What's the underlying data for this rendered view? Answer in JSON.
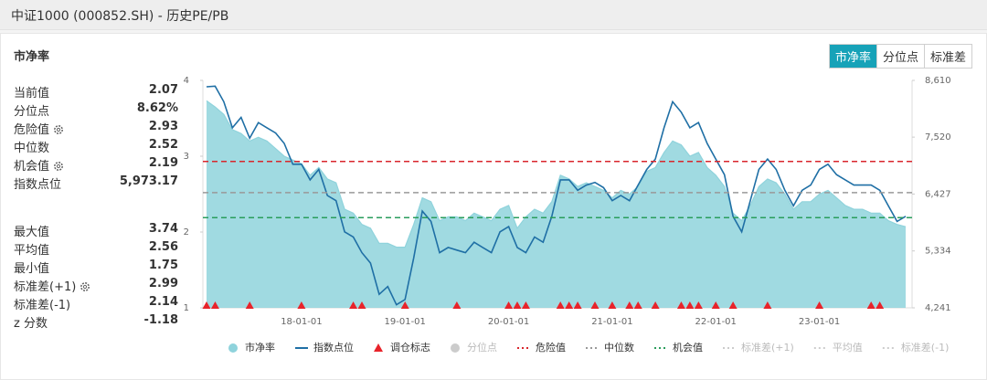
{
  "header": {
    "title": "中证1000 (000852.SH) - 历史PE/PB"
  },
  "panel": {
    "title": "市净率",
    "tabs": [
      "市净率",
      "分位点",
      "标准差"
    ]
  },
  "stats": {
    "current": [
      {
        "label": "当前值",
        "value": "2.07"
      },
      {
        "label": "分位点",
        "value": "8.62%"
      },
      {
        "label": "危险值",
        "value": "2.93"
      },
      {
        "label": "中位数",
        "value": "2.52"
      },
      {
        "label": "机会值",
        "value": "2.19"
      },
      {
        "label": "指数点位",
        "value": "5,973.17"
      }
    ],
    "summary": [
      {
        "label": "最大值",
        "value": "3.74"
      },
      {
        "label": "平均值",
        "value": "2.56"
      },
      {
        "label": "最小值",
        "value": "1.75"
      },
      {
        "label": "标准差(+1)",
        "value": "2.99"
      },
      {
        "label": "标准差(-1)",
        "value": "2.14"
      },
      {
        "label": "z 分数",
        "value": "-1.18"
      }
    ]
  },
  "chart_data": {
    "type": "combo",
    "categories": [
      null,
      null,
      null,
      null,
      null,
      null,
      null,
      null,
      null,
      null,
      null,
      "18-01-01",
      null,
      null,
      null,
      null,
      null,
      null,
      null,
      null,
      null,
      null,
      null,
      "19-01-01",
      null,
      null,
      null,
      null,
      null,
      null,
      null,
      null,
      null,
      null,
      null,
      "20-01-01",
      null,
      null,
      null,
      null,
      null,
      null,
      null,
      null,
      null,
      null,
      null,
      "21-01-01",
      null,
      null,
      null,
      null,
      null,
      null,
      null,
      null,
      null,
      null,
      null,
      "22-01-01",
      null,
      null,
      null,
      null,
      null,
      null,
      null,
      null,
      null,
      null,
      null,
      "23-01-01",
      null,
      null,
      null,
      null,
      null,
      null,
      null,
      null,
      null,
      null
    ],
    "ylim": [
      1,
      4
    ],
    "yticks": [
      1,
      2,
      3,
      4
    ],
    "y2lim": [
      4241,
      8610
    ],
    "y2ticks": [
      {
        "value": 4241,
        "label": "4,241"
      },
      {
        "value": 5334,
        "label": "5,334"
      },
      {
        "value": 6427,
        "label": "6,427"
      },
      {
        "value": 7520,
        "label": "7,520"
      },
      {
        "value": 8610,
        "label": "8,610"
      }
    ],
    "series": [
      {
        "name": "市净率",
        "kind": "area",
        "color": "#8fd3dc",
        "values": [
          3.73,
          3.65,
          3.55,
          3.35,
          3.3,
          3.2,
          3.25,
          3.2,
          3.1,
          3.0,
          2.95,
          2.9,
          2.75,
          2.85,
          2.7,
          2.65,
          2.3,
          2.25,
          2.1,
          2.05,
          1.85,
          1.85,
          1.8,
          1.8,
          2.1,
          2.45,
          2.4,
          2.15,
          2.2,
          2.2,
          2.15,
          2.25,
          2.2,
          2.15,
          2.3,
          2.35,
          2.05,
          2.2,
          2.3,
          2.25,
          2.4,
          2.75,
          2.7,
          2.6,
          2.65,
          2.6,
          2.55,
          2.45,
          2.55,
          2.5,
          2.6,
          2.8,
          2.85,
          3.05,
          3.2,
          3.15,
          3.0,
          3.05,
          2.85,
          2.75,
          2.6,
          2.25,
          2.15,
          2.35,
          2.6,
          2.7,
          2.65,
          2.5,
          2.3,
          2.4,
          2.4,
          2.5,
          2.55,
          2.45,
          2.35,
          2.3,
          2.3,
          2.25,
          2.25,
          2.15,
          2.1,
          2.07
        ]
      },
      {
        "name": "指数点位",
        "kind": "line",
        "axis": "y2",
        "color": "#1f6fa5",
        "values": [
          8488,
          8500,
          8200,
          7700,
          7900,
          7500,
          7800,
          7700,
          7600,
          7400,
          7000,
          7000,
          6700,
          6900,
          6400,
          6300,
          5700,
          5600,
          5300,
          5100,
          4500,
          4650,
          4300,
          4400,
          5200,
          6100,
          5900,
          5300,
          5400,
          5350,
          5300,
          5500,
          5400,
          5300,
          5700,
          5800,
          5400,
          5300,
          5600,
          5500,
          6000,
          6700,
          6700,
          6500,
          6600,
          6650,
          6550,
          6300,
          6400,
          6300,
          6600,
          6900,
          7100,
          7700,
          8200,
          8000,
          7700,
          7800,
          7400,
          7100,
          6800,
          6000,
          5700,
          6300,
          6900,
          7100,
          6900,
          6500,
          6200,
          6500,
          6600,
          6900,
          7000,
          6800,
          6700,
          6600,
          6600,
          6600,
          6500,
          6200,
          5900,
          6000
        ]
      },
      {
        "name": "调仓标志",
        "kind": "marker",
        "color": "#e8232a",
        "values": [
          1,
          1,
          null,
          null,
          null,
          1,
          null,
          null,
          null,
          null,
          null,
          1,
          null,
          null,
          null,
          null,
          null,
          1,
          1,
          null,
          null,
          null,
          null,
          1,
          null,
          null,
          null,
          null,
          null,
          1,
          null,
          null,
          null,
          null,
          null,
          1,
          1,
          1,
          null,
          null,
          null,
          1,
          1,
          1,
          null,
          1,
          null,
          1,
          null,
          1,
          1,
          null,
          1,
          null,
          null,
          1,
          1,
          1,
          null,
          1,
          null,
          1,
          null,
          null,
          null,
          1,
          null,
          null,
          null,
          null,
          null,
          1,
          null,
          null,
          null,
          null,
          null,
          1,
          1,
          null,
          null,
          null
        ]
      },
      {
        "name": "分位点",
        "kind": "point",
        "color": "#cccccc",
        "visible": false
      },
      {
        "name": "危险值",
        "kind": "hline",
        "color": "#d9262c",
        "value": 2.93
      },
      {
        "name": "中位数",
        "kind": "hline",
        "color": "#999999",
        "value": 2.52
      },
      {
        "name": "机会值",
        "kind": "hline",
        "color": "#2a9d5c",
        "value": 2.19
      },
      {
        "name": "标准差(+1)",
        "kind": "hline",
        "color": "#cccccc",
        "visible": false
      },
      {
        "name": "平均值",
        "kind": "hline",
        "color": "#cccccc",
        "visible": false
      },
      {
        "name": "标准差(-1)",
        "kind": "hline",
        "color": "#cccccc",
        "visible": false
      }
    ]
  }
}
